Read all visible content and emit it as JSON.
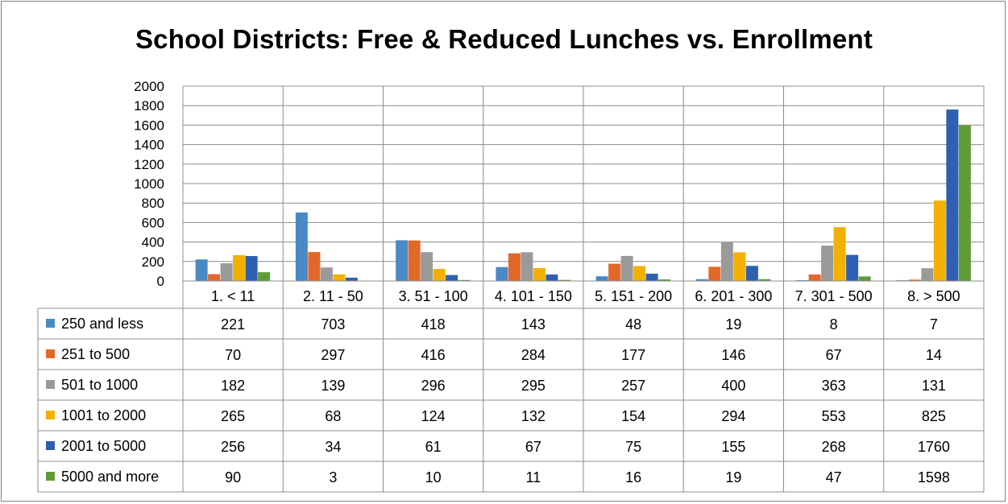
{
  "chart_data": {
    "type": "bar",
    "title": "School Districts: Free & Reduced Lunches vs. Enrollment",
    "xlabel": "",
    "ylabel": "",
    "ylim": [
      0,
      2000
    ],
    "yticks": [
      "0",
      "200",
      "400",
      "600",
      "800",
      "1000",
      "1200",
      "1400",
      "1600",
      "1800",
      "2000"
    ],
    "grid": true,
    "legend": "data-table-left",
    "categories": [
      "1. < 11",
      "2. 11 - 50",
      "3. 51 - 100",
      "4. 101 - 150",
      "5. 151 - 200",
      "6. 201 - 300",
      "7. 301 - 500",
      "8. > 500"
    ],
    "series": [
      {
        "name": "250 and less",
        "color": "#4a89c6",
        "values": [
          221,
          703,
          418,
          143,
          48,
          19,
          8,
          7
        ]
      },
      {
        "name": "251 to 500",
        "color": "#e2682a",
        "values": [
          70,
          297,
          416,
          284,
          177,
          146,
          67,
          14
        ]
      },
      {
        "name": "501 to 1000",
        "color": "#9a9a9a",
        "values": [
          182,
          139,
          296,
          295,
          257,
          400,
          363,
          131
        ]
      },
      {
        "name": "1001 to 2000",
        "color": "#f2b100",
        "values": [
          265,
          68,
          124,
          132,
          154,
          294,
          553,
          825
        ]
      },
      {
        "name": "2001 to 5000",
        "color": "#2f5fb0",
        "values": [
          256,
          34,
          61,
          67,
          75,
          155,
          268,
          1760
        ]
      },
      {
        "name": "5000 and more",
        "color": "#5e9c3a",
        "values": [
          90,
          3,
          10,
          11,
          16,
          19,
          47,
          1598
        ]
      }
    ]
  }
}
